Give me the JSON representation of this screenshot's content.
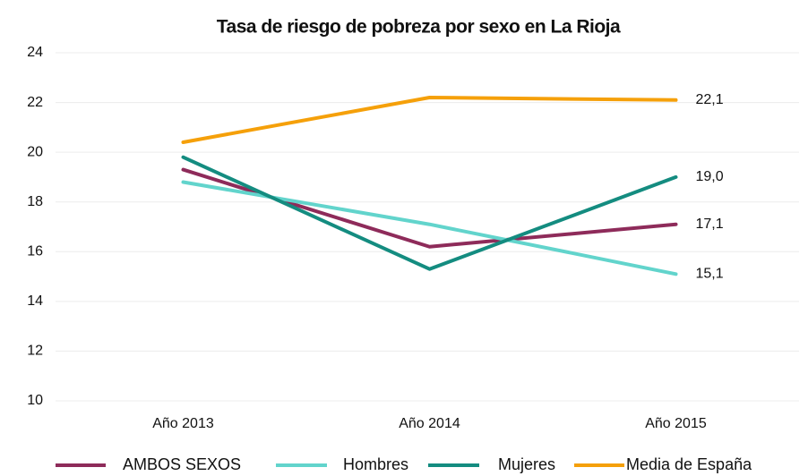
{
  "chart_data": {
    "type": "line",
    "title": "Tasa de riesgo de pobreza por sexo en La Rioja",
    "categories": [
      "Año 2013",
      "Año 2014",
      "Año 2015"
    ],
    "series": [
      {
        "name": "AMBOS SEXOS",
        "color": "#8e2b5a",
        "values": [
          19.3,
          16.2,
          17.1
        ],
        "value_labels": [
          null,
          null,
          "17,1"
        ]
      },
      {
        "name": "Hombres",
        "color": "#62d4cc",
        "values": [
          18.8,
          17.1,
          15.1
        ],
        "value_labels": [
          null,
          null,
          "15,1"
        ]
      },
      {
        "name": "Mujeres",
        "color": "#148c80",
        "values": [
          19.8,
          15.3,
          19.0
        ],
        "value_labels": [
          null,
          null,
          "19,0"
        ]
      },
      {
        "name": "Media de España",
        "color": "#f5a00a",
        "values": [
          20.4,
          22.2,
          22.1
        ],
        "value_labels": [
          null,
          null,
          "22,1"
        ]
      }
    ],
    "ylim": [
      10,
      24
    ],
    "yticks": [
      10,
      12,
      14,
      16,
      18,
      20,
      22,
      24
    ],
    "grid": true
  }
}
